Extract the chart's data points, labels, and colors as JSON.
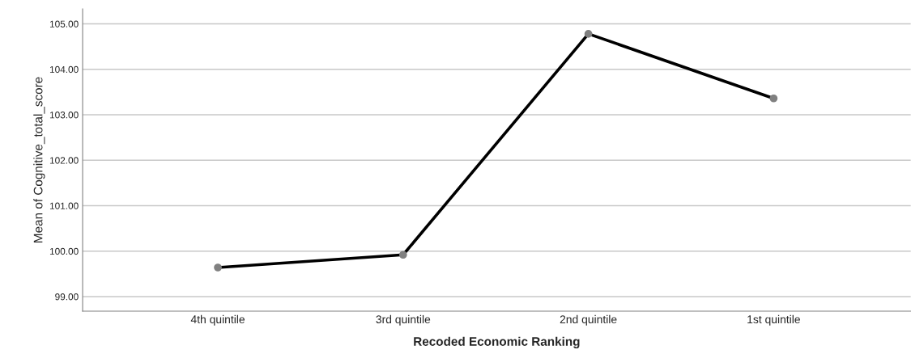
{
  "chart_data": {
    "type": "line",
    "xlabel": "Recoded Economic Ranking",
    "ylabel": "Mean of Cognitive_total_score",
    "categories": [
      "4th quintile",
      "3rd quintile",
      "2nd quintile",
      "1st quintile"
    ],
    "series": [
      {
        "color": "#000000",
        "values": [
          99.64,
          99.92,
          104.78,
          103.36
        ]
      }
    ],
    "marker": "circle",
    "line_style": "solid",
    "grid": "y",
    "ylim": [
      98.68,
      105.33
    ],
    "yticks": [
      {
        "value": 99,
        "label": "99.00"
      },
      {
        "value": 100,
        "label": "100.00"
      },
      {
        "value": 101,
        "label": "101.00"
      },
      {
        "value": 102,
        "label": "102.00"
      },
      {
        "value": 103,
        "label": "103.00"
      },
      {
        "value": 104,
        "label": "104.00"
      },
      {
        "value": 105,
        "label": "105.00"
      }
    ]
  }
}
